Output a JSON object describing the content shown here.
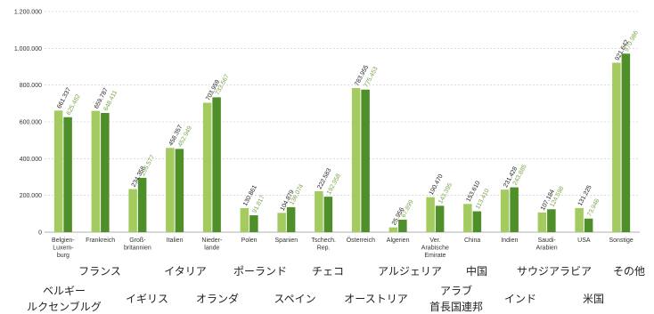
{
  "chart_data": {
    "type": "bar",
    "title": "",
    "xlabel": "",
    "ylabel": "",
    "ylim": [
      0,
      1200000
    ],
    "y_ticks": [
      "0",
      "200.000",
      "400.000",
      "600.000",
      "800.000",
      "1.000.000",
      "1.200.000"
    ],
    "grid": true,
    "colors": [
      "#a3cb5f",
      "#4e8f2a"
    ],
    "categories": [
      "Belgien-Luxem-burg",
      "Frankreich",
      "Groß-britannien",
      "Italien",
      "Nieder-lande",
      "Polen",
      "Spanien",
      "Tschech. Rep.",
      "Österreich",
      "Algerien",
      "Ver. Arabische Emirate",
      "China",
      "Indien",
      "Saudi-Arabien",
      "USA",
      "Sonstige"
    ],
    "category_lines": [
      [
        "Belgien-",
        "Luxem-",
        "burg"
      ],
      [
        "Frankreich"
      ],
      [
        "Groß-",
        "britannien"
      ],
      [
        "Italien"
      ],
      [
        "Nieder-",
        "lande"
      ],
      [
        "Polen"
      ],
      [
        "Spanien"
      ],
      [
        "Tschech.",
        "Rep."
      ],
      [
        "Österreich"
      ],
      [
        "Algerien"
      ],
      [
        "Ver.",
        "Arabische",
        "Emirate"
      ],
      [
        "China"
      ],
      [
        "Indien"
      ],
      [
        "Saudi-",
        "Arabien"
      ],
      [
        "USA"
      ],
      [
        "Sonstige"
      ]
    ],
    "series": [
      {
        "values": [
          661337,
          659787,
          234358,
          458357,
          703959,
          130861,
          104879,
          222583,
          783955,
          25956,
          190470,
          153610,
          231428,
          107184,
          131225,
          921642
        ],
        "labels": [
          "661.337",
          "659.787",
          "234.358",
          "458.357",
          "703.959",
          "130.861",
          "104.879",
          "222.583",
          "783.955",
          "25.956",
          "190.470",
          "153.610",
          "231.428",
          "107.184",
          "131.225",
          "921.642"
        ]
      },
      {
        "values": [
          625482,
          648411,
          295577,
          452949,
          733567,
          91817,
          136074,
          192958,
          775453,
          67899,
          143395,
          113410,
          243885,
          124598,
          73946,
          970986
        ],
        "labels": [
          "625.482",
          "648.411",
          "295.577",
          "452.949",
          "733.567",
          "91.817",
          "136.074",
          "192.958",
          "775.453",
          "67.899",
          "143.395",
          "113.410",
          "243.885",
          "124.598",
          "73.946",
          "970.986"
        ]
      }
    ]
  },
  "japanese_labels": [
    "フランス",
    "イタリア",
    "ポーランド",
    "チェコ",
    "アルジェリア",
    "中国",
    "サウジアラビア",
    "その他",
    "ベルギー",
    "ルクセンブルグ",
    "イギリス",
    "オランダ",
    "スペイン",
    "オーストリア",
    "アラブ",
    "首長国連邦",
    "インド",
    "米国"
  ]
}
